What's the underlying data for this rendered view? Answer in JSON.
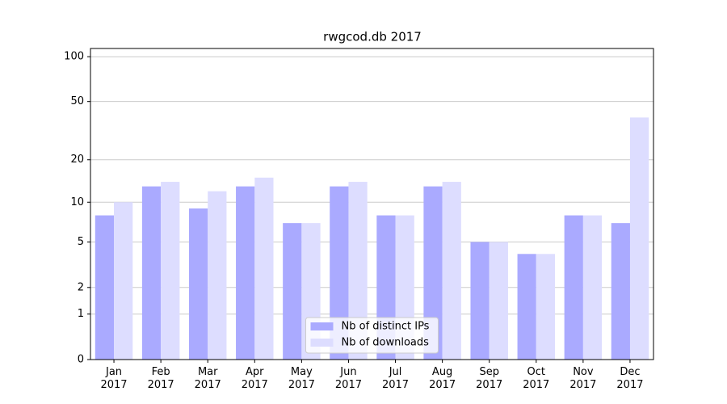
{
  "chart_data": {
    "type": "bar",
    "title": "rwgcod.db 2017",
    "categories": [
      "Jan\n2017",
      "Feb\n2017",
      "Mar\n2017",
      "Apr\n2017",
      "May\n2017",
      "Jun\n2017",
      "Jul\n2017",
      "Aug\n2017",
      "Sep\n2017",
      "Oct\n2017",
      "Nov\n2017",
      "Dec\n2017"
    ],
    "series": [
      {
        "name": "Nb of distinct IPs",
        "color": "#aaaaff",
        "values": [
          8,
          13,
          9,
          13,
          7,
          13,
          8,
          13,
          5,
          4,
          8,
          7
        ]
      },
      {
        "name": "Nb of downloads",
        "color": "#ddddff",
        "values": [
          10,
          14,
          12,
          15,
          7,
          14,
          8,
          14,
          5,
          4,
          8,
          39
        ]
      }
    ],
    "yscale": "log1p",
    "ylim": [
      0,
      113.5
    ],
    "yticks": [
      0,
      1,
      2,
      5,
      10,
      20,
      50,
      100
    ],
    "grid": true,
    "legend": "lower center"
  }
}
